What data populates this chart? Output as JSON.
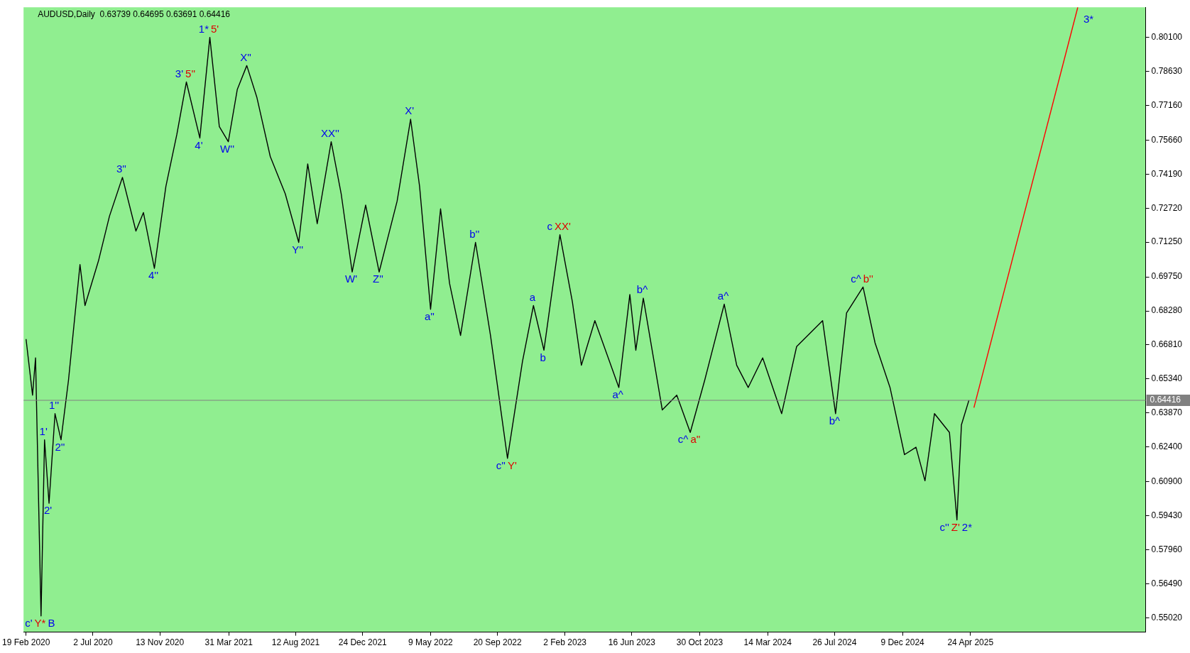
{
  "chart_data": {
    "type": "line",
    "title": "AUDUSD,Daily  0.63739 0.64695 0.63691 0.64416",
    "xlim": [
      "2020-02-14",
      "2026-04-10"
    ],
    "xticks": [
      {
        "value": "2020-02-19",
        "label": "19 Feb 2020"
      },
      {
        "value": "2020-07-02",
        "label": "2 Jul 2020"
      },
      {
        "value": "2020-11-13",
        "label": "13 Nov 2020"
      },
      {
        "value": "2021-03-31",
        "label": "31 Mar 2021"
      },
      {
        "value": "2021-08-12",
        "label": "12 Aug 2021"
      },
      {
        "value": "2021-12-24",
        "label": "24 Dec 2021"
      },
      {
        "value": "2022-05-09",
        "label": "9 May 2022"
      },
      {
        "value": "2022-09-20",
        "label": "20 Sep 2022"
      },
      {
        "value": "2023-02-02",
        "label": "2 Feb 2023"
      },
      {
        "value": "2023-06-16",
        "label": "16 Jun 2023"
      },
      {
        "value": "2023-10-30",
        "label": "30 Oct 2023"
      },
      {
        "value": "2024-03-14",
        "label": "14 Mar 2024"
      },
      {
        "value": "2024-07-26",
        "label": "26 Jul 2024"
      },
      {
        "value": "2024-12-09",
        "label": "9 Dec 2024"
      },
      {
        "value": "2025-04-24",
        "label": "24 Apr 2025"
      }
    ],
    "ylim": [
      0.544,
      0.814
    ],
    "yticks": [
      {
        "value": 0.5502,
        "label": "0.55020"
      },
      {
        "value": 0.5649,
        "label": "0.56490"
      },
      {
        "value": 0.5796,
        "label": "0.57960"
      },
      {
        "value": 0.5943,
        "label": "0.59430"
      },
      {
        "value": 0.609,
        "label": "0.60900"
      },
      {
        "value": 0.624,
        "label": "0.62400"
      },
      {
        "value": 0.6387,
        "label": "0.63870"
      },
      {
        "value": 0.6534,
        "label": "0.65340"
      },
      {
        "value": 0.6681,
        "label": "0.66810"
      },
      {
        "value": 0.6828,
        "label": "0.68280"
      },
      {
        "value": 0.6975,
        "label": "0.69750"
      },
      {
        "value": 0.7125,
        "label": "0.71250"
      },
      {
        "value": 0.7272,
        "label": "0.72720"
      },
      {
        "value": 0.7419,
        "label": "0.74190"
      },
      {
        "value": 0.7566,
        "label": "0.75660"
      },
      {
        "value": 0.7716,
        "label": "0.77160"
      },
      {
        "value": 0.7863,
        "label": "0.78630"
      },
      {
        "value": 0.801,
        "label": "0.80100"
      }
    ],
    "grid": false,
    "legend": false,
    "marker": "none",
    "series": [
      {
        "color": "#000000",
        "x": [
          "2020-02-19",
          "2020-03-03",
          "2020-03-09",
          "2020-03-20",
          "2020-03-27",
          "2020-04-05",
          "2020-04-17",
          "2020-04-29",
          "2020-05-14",
          "2020-06-06",
          "2020-06-16",
          "2020-07-13",
          "2020-08-04",
          "2020-08-30",
          "2020-09-26",
          "2020-10-11",
          "2020-11-02",
          "2020-11-25",
          "2020-12-17",
          "2021-01-05",
          "2021-02-01",
          "2021-02-21",
          "2021-03-12",
          "2021-03-30",
          "2021-04-17",
          "2021-05-06",
          "2021-05-26",
          "2021-06-22",
          "2021-07-22",
          "2021-08-18",
          "2021-09-05",
          "2021-09-24",
          "2021-10-22",
          "2021-11-11",
          "2021-12-03",
          "2021-12-30",
          "2022-01-26",
          "2022-03-03",
          "2022-03-30",
          "2022-04-17",
          "2022-05-09",
          "2022-05-29",
          "2022-06-16",
          "2022-07-08",
          "2022-08-07",
          "2022-09-06",
          "2022-10-10",
          "2022-11-09",
          "2022-12-01",
          "2022-12-22",
          "2023-01-23",
          "2023-02-17",
          "2023-03-07",
          "2023-04-03",
          "2023-05-21",
          "2023-06-12",
          "2023-06-24",
          "2023-07-09",
          "2023-08-16",
          "2023-09-14",
          "2023-10-11",
          "2023-11-09",
          "2023-12-18",
          "2024-01-12",
          "2024-02-04",
          "2024-03-04",
          "2024-04-11",
          "2024-05-11",
          "2024-07-02",
          "2024-07-28",
          "2024-08-19",
          "2024-09-21",
          "2024-10-15",
          "2024-11-14",
          "2024-12-13",
          "2025-01-05",
          "2025-01-23",
          "2025-02-11",
          "2025-03-13",
          "2025-03-28",
          "2025-04-06",
          "2025-04-21"
        ],
        "values": [
          0.6706,
          0.6464,
          0.6625,
          0.551,
          0.6271,
          0.5997,
          0.6384,
          0.6271,
          0.6529,
          0.7028,
          0.6851,
          0.7044,
          0.7237,
          0.7405,
          0.7173,
          0.7253,
          0.7012,
          0.7366,
          0.7591,
          0.7817,
          0.7575,
          0.801,
          0.7624,
          0.7559,
          0.7785,
          0.7888,
          0.7752,
          0.7495,
          0.7334,
          0.7124,
          0.7463,
          0.7205,
          0.7559,
          0.7334,
          0.6996,
          0.7285,
          0.6996,
          0.7302,
          0.7656,
          0.7366,
          0.6835,
          0.7269,
          0.6947,
          0.6722,
          0.7124,
          0.6722,
          0.6191,
          0.6609,
          0.6851,
          0.6658,
          0.7157,
          0.6867,
          0.6593,
          0.6786,
          0.6497,
          0.6899,
          0.6658,
          0.6883,
          0.64,
          0.6464,
          0.6303,
          0.6529,
          0.6857,
          0.6593,
          0.6497,
          0.6625,
          0.6384,
          0.6674,
          0.6786,
          0.6384,
          0.6819,
          0.6931,
          0.669,
          0.6497,
          0.6207,
          0.6239,
          0.6094,
          0.6384,
          0.6303,
          0.5925,
          0.6336,
          0.6442
        ]
      },
      {
        "color": "#ff0000",
        "x": [
          "2025-05-01",
          "2025-11-25"
        ],
        "values": [
          0.641,
          0.814
        ]
      }
    ],
    "ref_lines": [
      {
        "axis": "y",
        "value": 0.64416,
        "label": "0.64416",
        "color": "#808080"
      }
    ],
    "annotations": [
      {
        "text": "1*",
        "x": "2021-02-21",
        "y": 0.801
      },
      {
        "text": "5'",
        "x": "2021-02-21",
        "y": 0.801
      },
      {
        "text": "3'",
        "x": "2021-01-05",
        "y": 0.7817
      },
      {
        "text": "5''",
        "x": "2021-01-05",
        "y": 0.7817
      },
      {
        "text": "4'",
        "x": "2021-02-01",
        "y": 0.7575
      },
      {
        "text": "3''",
        "x": "2020-08-30",
        "y": 0.7405
      },
      {
        "text": "4''",
        "x": "2020-11-02",
        "y": 0.7012
      },
      {
        "text": "1''",
        "x": "2020-04-17",
        "y": 0.6384
      },
      {
        "text": "1'",
        "x": "2020-03-27",
        "y": 0.6271
      },
      {
        "text": "2''",
        "x": "2020-04-29",
        "y": 0.6271
      },
      {
        "text": "2'",
        "x": "2020-04-05",
        "y": 0.5997
      },
      {
        "text": "c'",
        "x": "2020-03-20",
        "y": 0.551
      },
      {
        "text": "Y*",
        "x": "2020-03-20",
        "y": 0.551
      },
      {
        "text": "B",
        "x": "2020-03-20",
        "y": 0.551
      },
      {
        "text": "X''",
        "x": "2021-05-06",
        "y": 0.7888
      },
      {
        "text": "W''",
        "x": "2021-03-30",
        "y": 0.7559
      },
      {
        "text": "XX''",
        "x": "2021-10-22",
        "y": 0.7559
      },
      {
        "text": "Y''",
        "x": "2021-08-18",
        "y": 0.7124
      },
      {
        "text": "W'",
        "x": "2021-12-03",
        "y": 0.6996
      },
      {
        "text": "Z''",
        "x": "2022-01-26",
        "y": 0.6996
      },
      {
        "text": "X'",
        "x": "2022-03-30",
        "y": 0.7656
      },
      {
        "text": "b''",
        "x": "2022-08-07",
        "y": 0.7124
      },
      {
        "text": "a''",
        "x": "2022-05-09",
        "y": 0.6835
      },
      {
        "text": "c''",
        "x": "2022-10-10",
        "y": 0.6191
      },
      {
        "text": "Y'",
        "x": "2022-10-10",
        "y": 0.6191
      },
      {
        "text": "c",
        "x": "2023-01-23",
        "y": 0.7157
      },
      {
        "text": "XX'",
        "x": "2023-01-23",
        "y": 0.7157
      },
      {
        "text": "a",
        "x": "2022-12-01",
        "y": 0.6851
      },
      {
        "text": "b",
        "x": "2022-12-22",
        "y": 0.6658
      },
      {
        "text": "b^",
        "x": "2023-07-09",
        "y": 0.6883
      },
      {
        "text": "a^",
        "x": "2023-05-21",
        "y": 0.6497
      },
      {
        "text": "c^",
        "x": "2023-10-11",
        "y": 0.6303
      },
      {
        "text": "a''",
        "x": "2023-10-11",
        "y": 0.6303
      },
      {
        "text": "a^",
        "x": "2023-12-18",
        "y": 0.6857
      },
      {
        "text": "b^",
        "x": "2024-07-28",
        "y": 0.6384
      },
      {
        "text": "c^",
        "x": "2024-09-21",
        "y": 0.6931
      },
      {
        "text": "b''",
        "x": "2024-09-21",
        "y": 0.6931
      },
      {
        "text": "c''",
        "x": "2025-03-28",
        "y": 0.5925
      },
      {
        "text": "Z'",
        "x": "2025-03-28",
        "y": 0.5925
      },
      {
        "text": "2*",
        "x": "2025-03-28",
        "y": 0.5925
      },
      {
        "text": "3*",
        "x": "2025-11-25",
        "y": 0.814
      }
    ]
  }
}
